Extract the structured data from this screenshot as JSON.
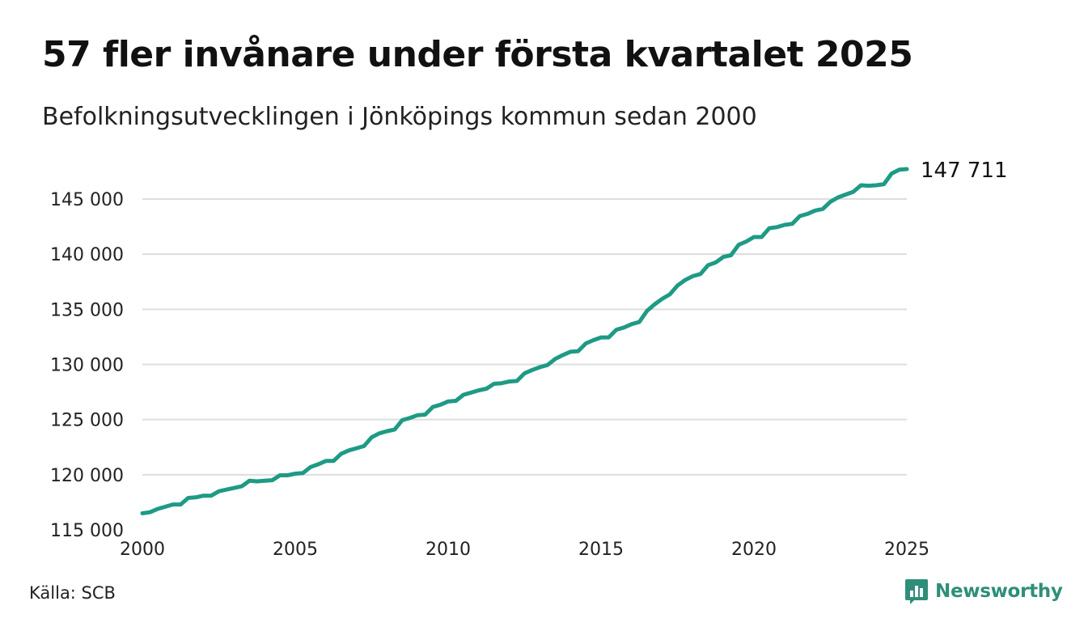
{
  "header": {
    "title": "57 fler invånare under första kvartalet 2025",
    "subtitle": "Befolkningsutvecklingen i Jönköpings kommun sedan 2000"
  },
  "footer": {
    "source": "Källa: SCB",
    "brand": "Newsworthy",
    "brand_icon": "chart-bubble-icon"
  },
  "colors": {
    "line": "#1e9a85",
    "grid": "#dddddd",
    "brand": "#2f8e79"
  },
  "chart_data": {
    "type": "line",
    "title": "57 fler invånare under första kvartalet 2025",
    "subtitle": "Befolkningsutvecklingen i Jönköpings kommun sedan 2000",
    "xlabel": "",
    "ylabel": "",
    "xlim": [
      2000,
      2025
    ],
    "ylim": [
      115000,
      148000
    ],
    "x_ticks": [
      2000,
      2005,
      2010,
      2015,
      2020,
      2025
    ],
    "x_tick_labels": [
      "2000",
      "2005",
      "2010",
      "2015",
      "2020",
      "2025"
    ],
    "y_ticks": [
      115000,
      120000,
      125000,
      130000,
      135000,
      140000,
      145000
    ],
    "y_tick_labels": [
      "115 000",
      "120 000",
      "125 000",
      "130 000",
      "135 000",
      "140 000",
      "145 000"
    ],
    "grid": true,
    "end_label": "147 711",
    "series": [
      {
        "x": [
          2000.0,
          2000.25,
          2000.5,
          2000.75,
          2001.0,
          2001.25,
          2001.5,
          2001.75,
          2002.0,
          2002.25,
          2002.5,
          2002.75,
          2003.0,
          2003.25,
          2003.5,
          2003.75,
          2004.0,
          2004.25,
          2004.5,
          2004.75,
          2005.0,
          2005.25,
          2005.5,
          2005.75,
          2006.0,
          2006.25,
          2006.5,
          2006.75,
          2007.0,
          2007.25,
          2007.5,
          2007.75,
          2008.0,
          2008.25,
          2008.5,
          2008.75,
          2009.0,
          2009.25,
          2009.5,
          2009.75,
          2010.0,
          2010.25,
          2010.5,
          2010.75,
          2011.0,
          2011.25,
          2011.5,
          2011.75,
          2012.0,
          2012.25,
          2012.5,
          2012.75,
          2013.0,
          2013.25,
          2013.5,
          2013.75,
          2014.0,
          2014.25,
          2014.5,
          2014.75,
          2015.0,
          2015.25,
          2015.5,
          2015.75,
          2016.0,
          2016.25,
          2016.5,
          2016.75,
          2017.0,
          2017.25,
          2017.5,
          2017.75,
          2018.0,
          2018.25,
          2018.5,
          2018.75,
          2019.0,
          2019.25,
          2019.5,
          2019.75,
          2020.0,
          2020.25,
          2020.5,
          2020.75,
          2021.0,
          2021.25,
          2021.5,
          2021.75,
          2022.0,
          2022.25,
          2022.5,
          2022.75,
          2023.0,
          2023.25,
          2023.5,
          2023.75,
          2024.0,
          2024.25,
          2024.5,
          2024.75,
          2025.0
        ],
        "values": [
          116500,
          116600,
          116900,
          117100,
          117300,
          117300,
          117900,
          117950,
          118100,
          118100,
          118500,
          118650,
          118800,
          118950,
          119450,
          119400,
          119450,
          119500,
          119950,
          119950,
          120100,
          120150,
          120700,
          120950,
          121250,
          121250,
          121900,
          122200,
          122400,
          122600,
          123400,
          123750,
          123950,
          124100,
          124950,
          125150,
          125400,
          125450,
          126150,
          126350,
          126650,
          126700,
          127250,
          127450,
          127650,
          127800,
          128250,
          128300,
          128450,
          128500,
          129200,
          129500,
          129750,
          129950,
          130500,
          130850,
          131150,
          131200,
          131900,
          132200,
          132450,
          132450,
          133150,
          133350,
          133650,
          133850,
          134850,
          135450,
          135950,
          136350,
          137150,
          137650,
          138000,
          138200,
          139000,
          139250,
          139750,
          139900,
          140850,
          141150,
          141550,
          141550,
          142350,
          142450,
          142650,
          142750,
          143450,
          143650,
          143950,
          144100,
          144750,
          145150,
          145400,
          145650,
          146250,
          146200,
          146250,
          146350,
          147300,
          147654,
          147711
        ]
      }
    ]
  }
}
